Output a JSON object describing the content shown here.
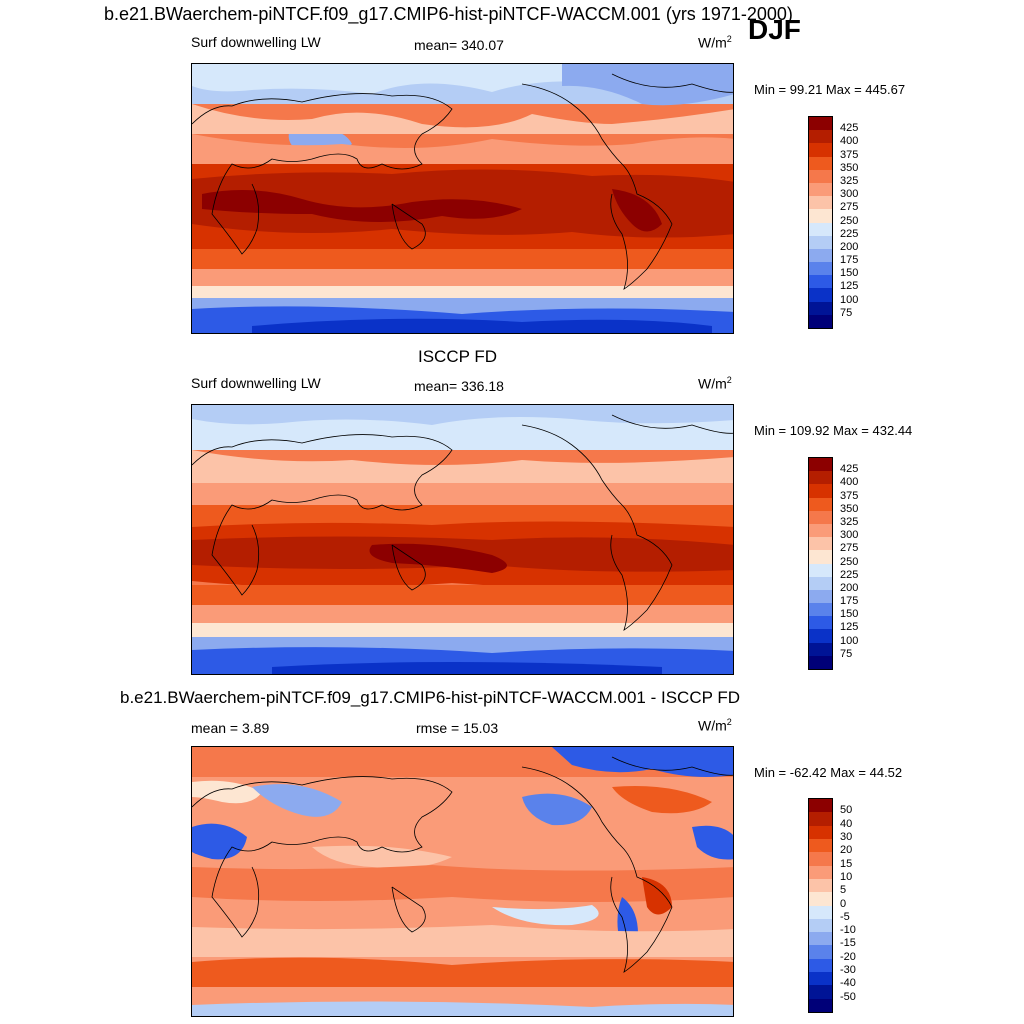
{
  "header": {
    "title": "b.e21.BWaerchem-piNTCF.f09_g17.CMIP6-hist-piNTCF-WACCM.001 (yrs 1971-2000)",
    "season": "DJF"
  },
  "panels": [
    {
      "id": "model",
      "title": "",
      "variable": "Surf downwelling LW",
      "stat": "mean= 340.07",
      "units": "W/m",
      "units_sup": "2",
      "minmax": "Min =  99.21 Max = 445.67",
      "colorbar": {
        "labels": [
          "425",
          "400",
          "375",
          "350",
          "325",
          "300",
          "275",
          "250",
          "225",
          "200",
          "175",
          "150",
          "125",
          "100",
          "75"
        ],
        "colors": [
          "#8c0000",
          "#b41e00",
          "#d73200",
          "#ee5a1e",
          "#f5784b",
          "#fa9b78",
          "#fcc3a8",
          "#fde6d2",
          "#d6e8fb",
          "#b4cdf5",
          "#8caaef",
          "#5a82eb",
          "#2d5ae6",
          "#0a32c8",
          "#001496",
          "#000078"
        ]
      }
    },
    {
      "id": "obs",
      "title": "ISCCP FD",
      "variable": "Surf downwelling LW",
      "stat": "mean= 336.18",
      "units": "W/m",
      "units_sup": "2",
      "minmax": "Min = 109.92 Max = 432.44",
      "colorbar": {
        "labels": [
          "425",
          "400",
          "375",
          "350",
          "325",
          "300",
          "275",
          "250",
          "225",
          "200",
          "175",
          "150",
          "125",
          "100",
          "75"
        ],
        "colors": [
          "#8c0000",
          "#b41e00",
          "#d73200",
          "#ee5a1e",
          "#f5784b",
          "#fa9b78",
          "#fcc3a8",
          "#fde6d2",
          "#d6e8fb",
          "#b4cdf5",
          "#8caaef",
          "#5a82eb",
          "#2d5ae6",
          "#0a32c8",
          "#001496",
          "#000078"
        ]
      }
    },
    {
      "id": "diff",
      "title": "b.e21.BWaerchem-piNTCF.f09_g17.CMIP6-hist-piNTCF-WACCM.001 - ISCCP FD",
      "variable": "",
      "mean": "mean =   3.89",
      "stat": "rmse =  15.03",
      "units": "W/m",
      "units_sup": "2",
      "minmax": "Min = -62.42 Max =  44.52",
      "colorbar": {
        "labels": [
          "50",
          "40",
          "30",
          "20",
          "15",
          "10",
          "5",
          "0",
          "-5",
          "-10",
          "-15",
          "-20",
          "-30",
          "-40",
          "-50"
        ],
        "colors": [
          "#8c0000",
          "#b41e00",
          "#d73200",
          "#ee5a1e",
          "#f5784b",
          "#fa9b78",
          "#fcc3a8",
          "#fde6d2",
          "#d6e8fb",
          "#b4cdf5",
          "#8caaef",
          "#5a82eb",
          "#2d5ae6",
          "#0a32c8",
          "#001496",
          "#000078"
        ]
      }
    }
  ]
}
